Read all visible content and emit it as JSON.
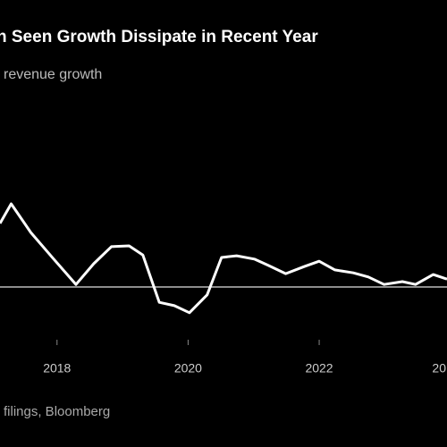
{
  "chart_data": {
    "type": "line",
    "title": "n Seen Growth Dissipate in Recent Year",
    "subtitle": "revenue growth",
    "source": "filings, Bloomberg",
    "x": [
      2017.13,
      2017.3,
      2017.6,
      2017.95,
      2018.29,
      2018.56,
      2018.83,
      2019.1,
      2019.31,
      2019.56,
      2019.79,
      2020.02,
      2020.29,
      2020.51,
      2020.74,
      2021.01,
      2021.22,
      2021.49,
      2021.77,
      2022.0,
      2022.24,
      2022.52,
      2022.75,
      2022.99,
      2023.27,
      2023.47,
      2023.74,
      2023.95
    ],
    "series": [
      {
        "color": "#ffffff",
        "values": [
          15.3,
          20.0,
          13.1,
          6.7,
          0.6,
          5.6,
          9.7,
          9.9,
          7.7,
          -3.7,
          -4.5,
          -6.2,
          -1.9,
          7.1,
          7.5,
          6.7,
          5.2,
          3.2,
          4.9,
          6.2,
          4.1,
          3.4,
          2.4,
          0.6,
          1.3,
          0.6,
          3.0,
          1.9
        ]
      }
    ],
    "xlim": [
      2017.13,
      2023.95
    ],
    "xticks": [
      2018,
      2020,
      2022,
      {
        "value": 2024,
        "label": "20"
      }
    ],
    "ylim": [
      -10,
      25
    ],
    "zero_line": true
  }
}
